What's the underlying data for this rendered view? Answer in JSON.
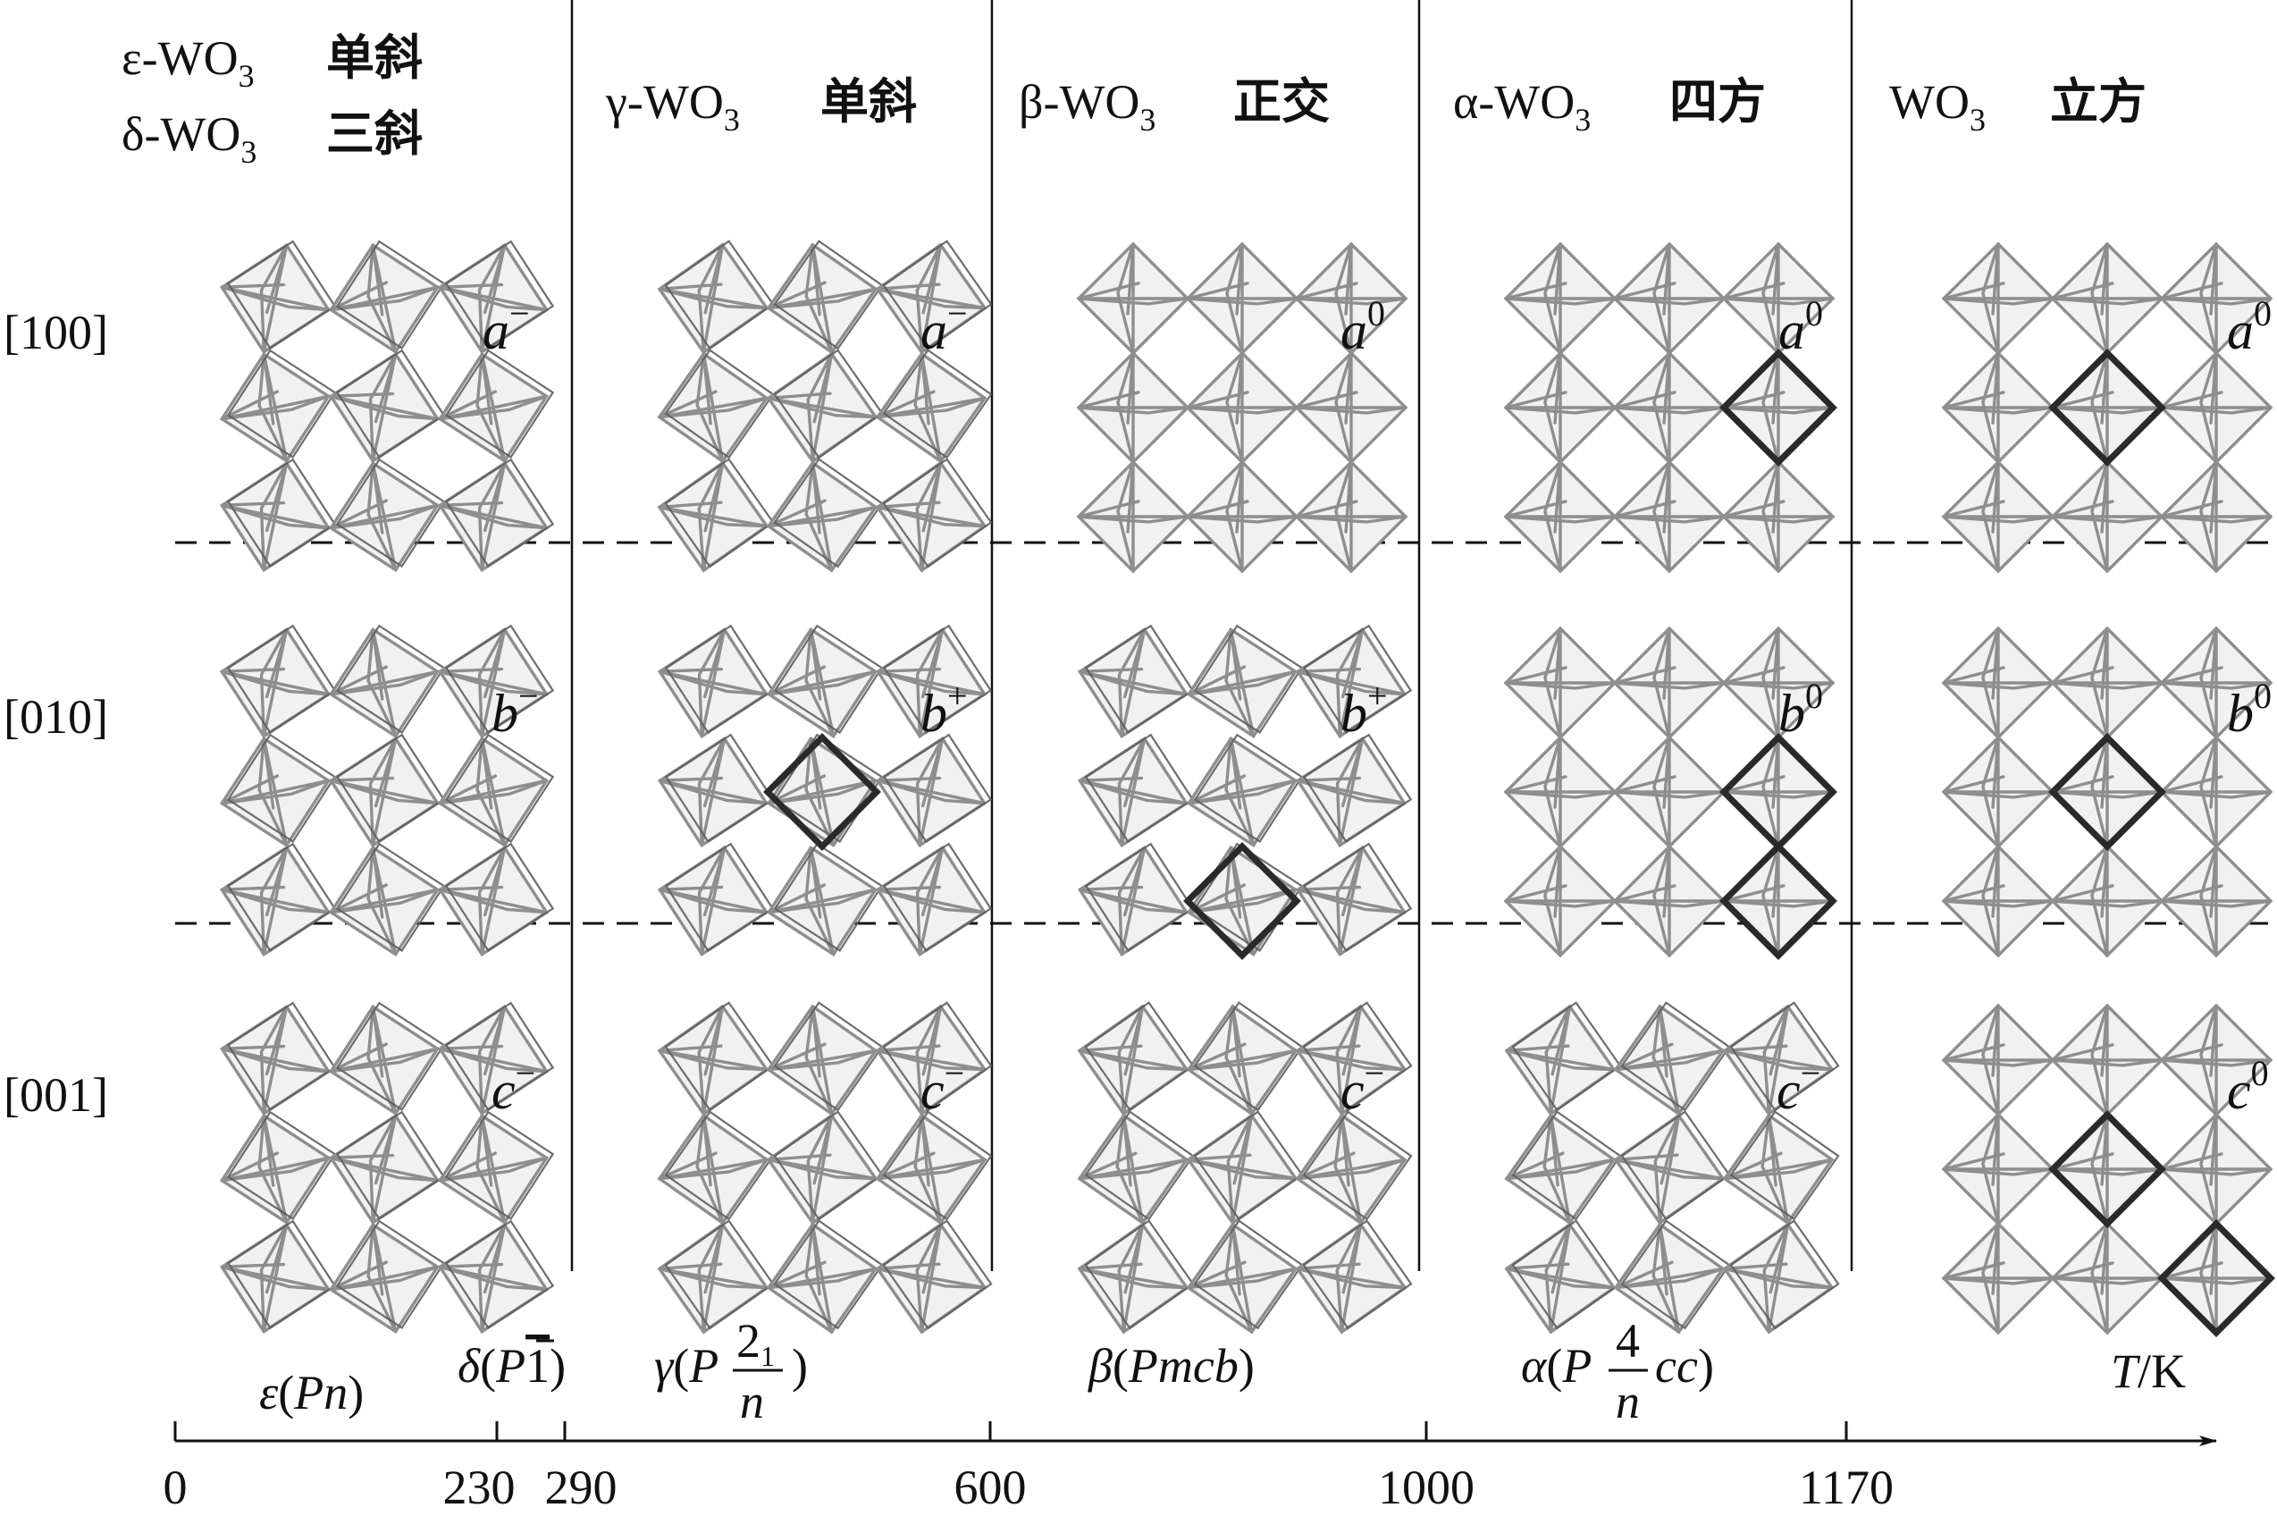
{
  "phases": [
    {
      "lines": [
        {
          "prefix": "ε-WO",
          "sub": "3",
          "crystal": "单斜"
        },
        {
          "prefix": "δ-WO",
          "sub": "3",
          "crystal": "三斜"
        }
      ]
    },
    {
      "lines": [
        {
          "prefix": "γ-WO",
          "sub": "3",
          "crystal": "单斜"
        }
      ]
    },
    {
      "lines": [
        {
          "prefix": "β-WO",
          "sub": "3",
          "crystal": "正交"
        }
      ]
    },
    {
      "lines": [
        {
          "prefix": "α-WO",
          "sub": "3",
          "crystal": "四方"
        }
      ]
    },
    {
      "lines": [
        {
          "prefix": "WO",
          "sub": "3",
          "crystal": "立方"
        }
      ]
    }
  ],
  "rows": [
    "[100]",
    "[010]",
    "[001]"
  ],
  "tilts": [
    [
      {
        "axis": "a",
        "sign": "−"
      },
      {
        "axis": "a",
        "sign": "−"
      },
      {
        "axis": "a",
        "sign": "0"
      },
      {
        "axis": "a",
        "sign": "0"
      },
      {
        "axis": "a",
        "sign": "0"
      }
    ],
    [
      {
        "axis": "b",
        "sign": "−"
      },
      {
        "axis": "b",
        "sign": "+"
      },
      {
        "axis": "b",
        "sign": "+"
      },
      {
        "axis": "b",
        "sign": "0"
      },
      {
        "axis": "b",
        "sign": "0"
      }
    ],
    [
      {
        "axis": "c",
        "sign": "−"
      },
      {
        "axis": "c",
        "sign": "−"
      },
      {
        "axis": "c",
        "sign": "−"
      },
      {
        "axis": "c",
        "sign": "−"
      },
      {
        "axis": "c",
        "sign": "0"
      }
    ]
  ],
  "space_groups": [
    {
      "greek": "ε",
      "open": "(",
      "italic": "Pn",
      "close": ")"
    },
    {
      "greek": "δ",
      "open": "(",
      "italic": "P",
      "overbar": "1",
      "close": ")"
    },
    {
      "greek": "γ",
      "open": "(",
      "italic": "P",
      "frac_num": "2",
      "frac_num_sub": "1",
      "frac_den": "n",
      "close": ")"
    },
    {
      "greek": "β",
      "open": "(",
      "italic": "Pmcb",
      "close": ")"
    },
    {
      "greek": "α",
      "open": "(",
      "italic": "P",
      "frac_num": "4",
      "frac_den": "n",
      "after": "cc",
      "close": ")"
    }
  ],
  "axis": {
    "label_italic": "T",
    "label_unit": "/K",
    "ticks": [
      0,
      230,
      290,
      600,
      1000,
      1170
    ]
  }
}
